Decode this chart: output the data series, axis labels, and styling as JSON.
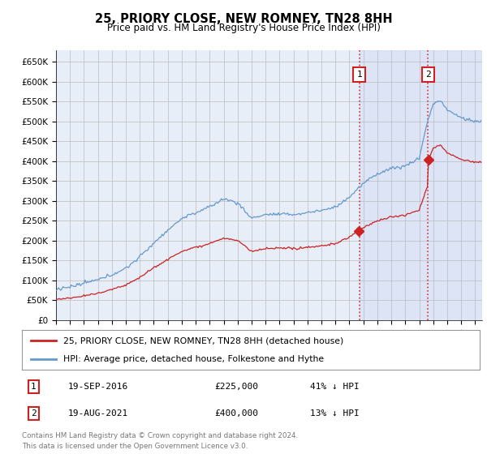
{
  "title": "25, PRIORY CLOSE, NEW ROMNEY, TN28 8HH",
  "subtitle": "Price paid vs. HM Land Registry's House Price Index (HPI)",
  "ylabel_ticks": [
    "£0",
    "£50K",
    "£100K",
    "£150K",
    "£200K",
    "£250K",
    "£300K",
    "£350K",
    "£400K",
    "£450K",
    "£500K",
    "£550K",
    "£600K",
    "£650K"
  ],
  "ytick_values": [
    0,
    50000,
    100000,
    150000,
    200000,
    250000,
    300000,
    350000,
    400000,
    450000,
    500000,
    550000,
    600000,
    650000
  ],
  "ylim": [
    0,
    680000
  ],
  "hpi_color": "#6699cc",
  "price_color": "#cc2222",
  "bg_color": "#e8eef8",
  "plot_bg": "#ffffff",
  "transaction1_date": "19-SEP-2016",
  "transaction1_price": 225000,
  "transaction1_label": "41% ↓ HPI",
  "transaction2_date": "19-AUG-2021",
  "transaction2_price": 400000,
  "transaction2_label": "13% ↓ HPI",
  "legend_line1": "25, PRIORY CLOSE, NEW ROMNEY, TN28 8HH (detached house)",
  "legend_line2": "HPI: Average price, detached house, Folkestone and Hythe",
  "footer": "Contains HM Land Registry data © Crown copyright and database right 2024.\nThis data is licensed under the Open Government Licence v3.0.",
  "t1_year": 2016.708,
  "t2_year": 2021.625,
  "p1": 225000,
  "p2": 400000
}
